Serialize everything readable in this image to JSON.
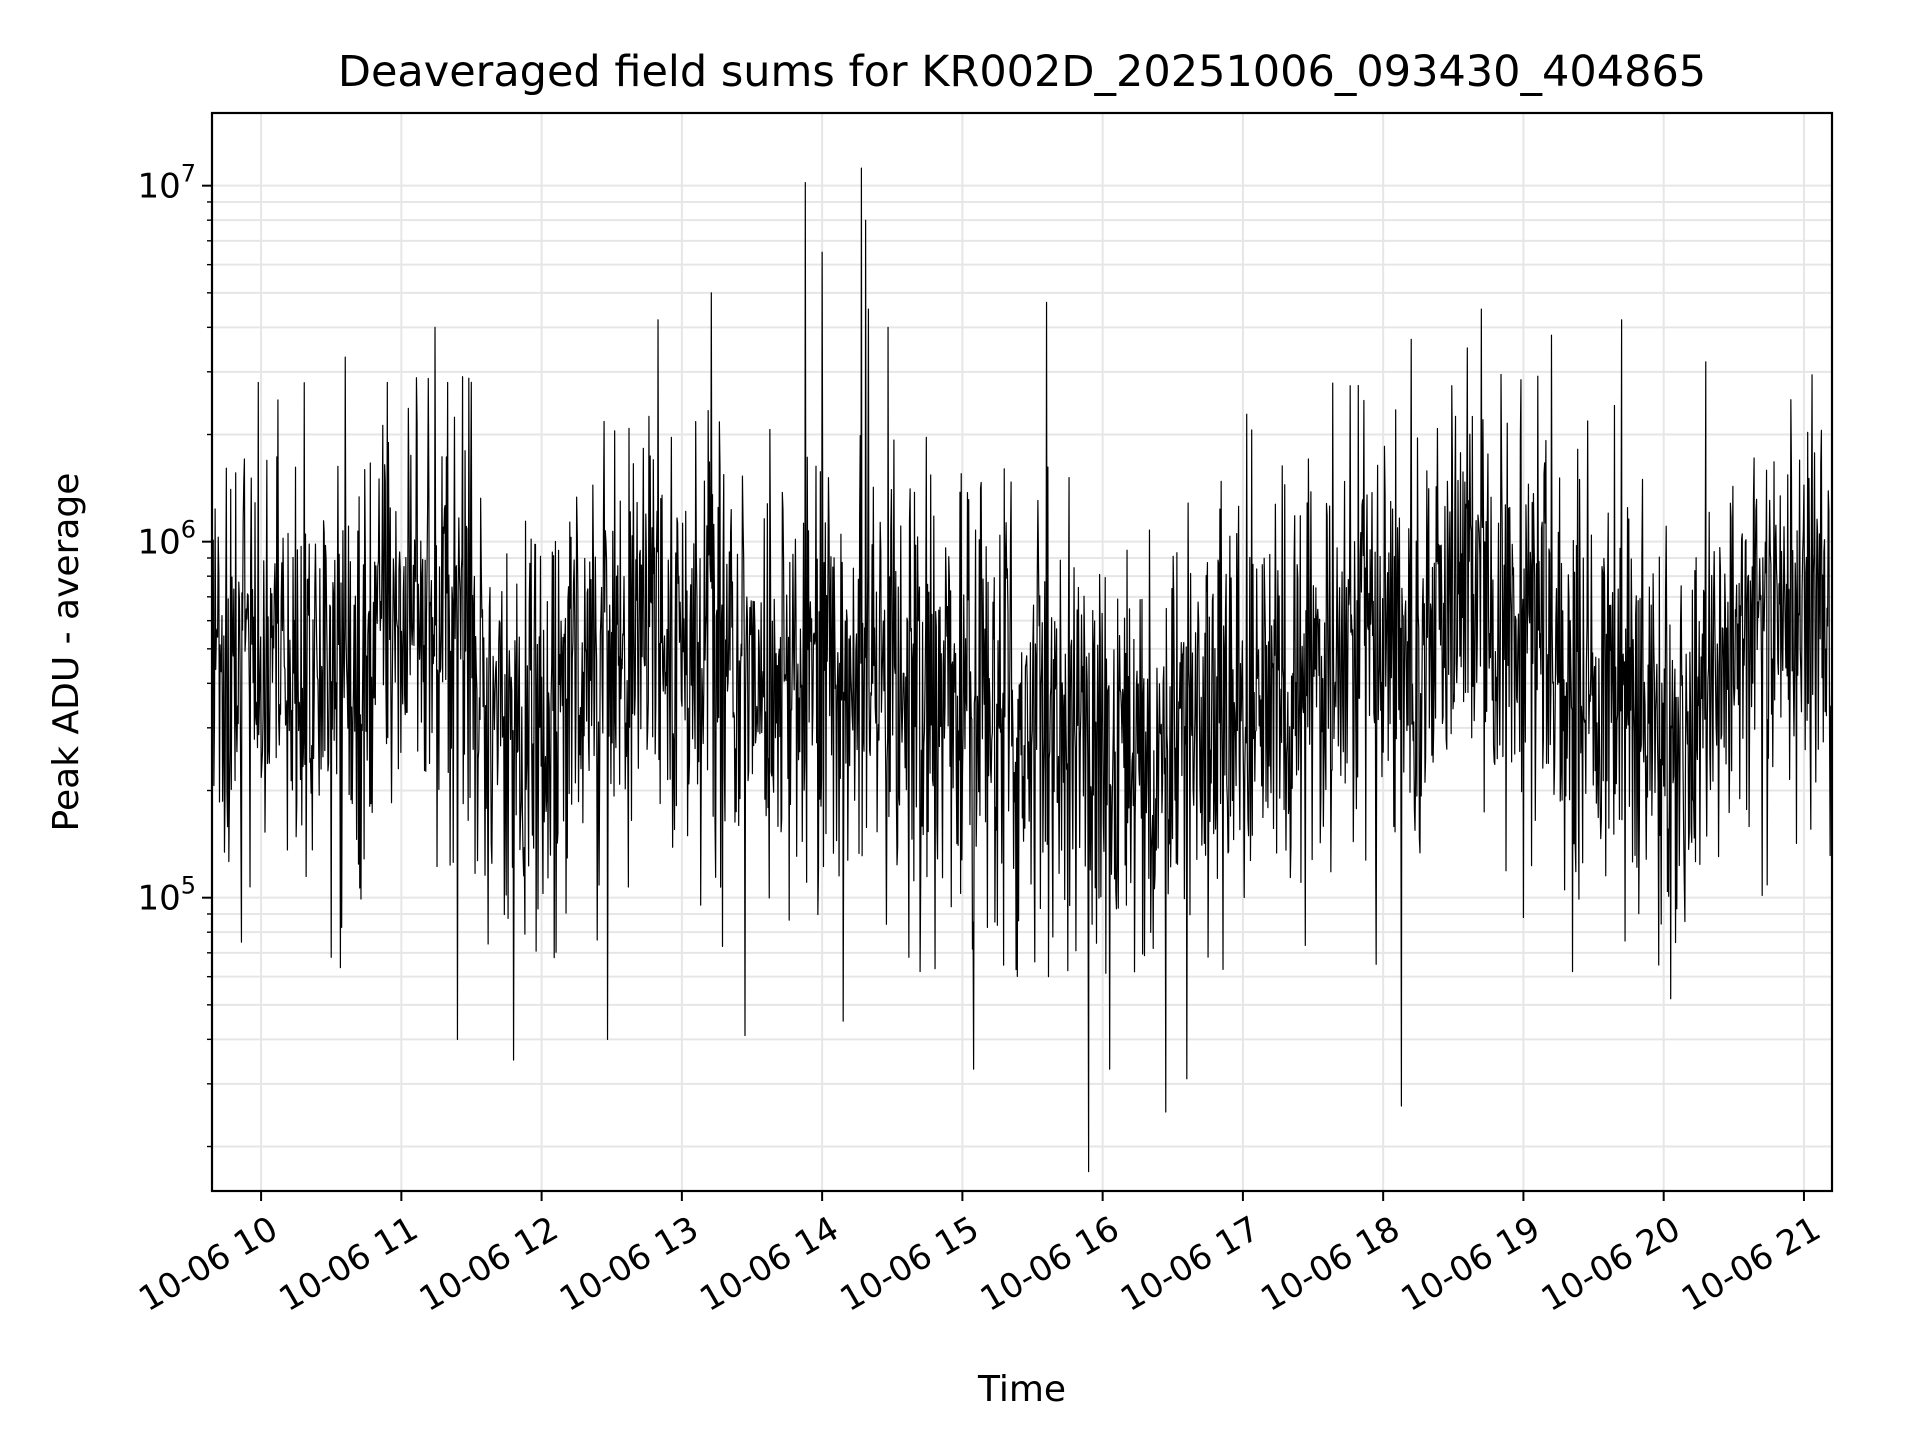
{
  "chart_data": {
    "type": "line",
    "title": "Deaveraged field sums for KR002D_20251006_093430_404865",
    "xlabel": "Time",
    "ylabel": "Peak ADU - average",
    "yscale": "log",
    "ylim": [
      15000,
      16000000
    ],
    "xlim_hours": [
      9.65,
      21.2
    ],
    "grid": true,
    "line_color": "#000000",
    "grid_color": "#e6e6e6",
    "x_ticks": [
      {
        "hour": 10,
        "label": "10-06 10"
      },
      {
        "hour": 11,
        "label": "10-06 11"
      },
      {
        "hour": 12,
        "label": "10-06 12"
      },
      {
        "hour": 13,
        "label": "10-06 13"
      },
      {
        "hour": 14,
        "label": "10-06 14"
      },
      {
        "hour": 15,
        "label": "10-06 15"
      },
      {
        "hour": 16,
        "label": "10-06 16"
      },
      {
        "hour": 17,
        "label": "10-06 17"
      },
      {
        "hour": 18,
        "label": "10-06 18"
      },
      {
        "hour": 19,
        "label": "10-06 19"
      },
      {
        "hour": 20,
        "label": "10-06 20"
      },
      {
        "hour": 21,
        "label": "10-06 21"
      }
    ],
    "y_ticks": [
      {
        "value": 100000,
        "base": "10",
        "exp": "5"
      },
      {
        "value": 1000000,
        "base": "10",
        "exp": "6"
      },
      {
        "value": 10000000,
        "base": "10",
        "exp": "7"
      }
    ],
    "baseline_profile": {
      "hour": [
        9.65,
        10.0,
        10.5,
        11.0,
        11.5,
        11.8,
        12.2,
        12.8,
        13.2,
        13.6,
        14.0,
        14.3,
        14.8,
        15.2,
        15.5,
        15.9,
        16.3,
        16.8,
        17.3,
        17.8,
        18.2,
        18.6,
        18.9,
        19.3,
        19.7,
        20.1,
        20.5,
        20.9,
        21.2
      ],
      "median": [
        450000,
        500000,
        420000,
        600000,
        550000,
        250000,
        420000,
        550000,
        520000,
        420000,
        400000,
        420000,
        380000,
        280000,
        300000,
        280000,
        220000,
        320000,
        400000,
        520000,
        480000,
        750000,
        650000,
        380000,
        400000,
        250000,
        600000,
        600000,
        600000
      ]
    },
    "series": [
      {
        "name": "Deaveraged field sums",
        "peaks": [
          {
            "hour": 9.98,
            "value": 2800000
          },
          {
            "hour": 10.12,
            "value": 2500000
          },
          {
            "hour": 10.6,
            "value": 3300000
          },
          {
            "hour": 10.9,
            "value": 2800000
          },
          {
            "hour": 11.24,
            "value": 4000000
          },
          {
            "hour": 11.33,
            "value": 2800000
          },
          {
            "hour": 12.83,
            "value": 4200000
          },
          {
            "hour": 13.21,
            "value": 5000000
          },
          {
            "hour": 13.88,
            "value": 10200000
          },
          {
            "hour": 14.0,
            "value": 6500000
          },
          {
            "hour": 14.28,
            "value": 11200000
          },
          {
            "hour": 14.31,
            "value": 8000000
          },
          {
            "hour": 14.33,
            "value": 7500000
          },
          {
            "hour": 14.33,
            "value": 6000000
          },
          {
            "hour": 14.33,
            "value": 5500000
          },
          {
            "hour": 14.33,
            "value": 5000000
          },
          {
            "hour": 14.33,
            "value": 4800000
          },
          {
            "hour": 14.33,
            "value": 4500000
          },
          {
            "hour": 14.47,
            "value": 4000000
          },
          {
            "hour": 15.6,
            "value": 4700000
          },
          {
            "hour": 18.2,
            "value": 3700000
          },
          {
            "hour": 18.7,
            "value": 4500000
          },
          {
            "hour": 18.6,
            "value": 3500000
          },
          {
            "hour": 19.2,
            "value": 3800000
          },
          {
            "hour": 19.7,
            "value": 4200000
          },
          {
            "hour": 20.3,
            "value": 3200000
          }
        ],
        "troughs": [
          {
            "hour": 9.86,
            "value": 75000
          },
          {
            "hour": 10.5,
            "value": 68000
          },
          {
            "hour": 11.4,
            "value": 40000
          },
          {
            "hour": 11.8,
            "value": 35000
          },
          {
            "hour": 12.47,
            "value": 40000
          },
          {
            "hour": 13.45,
            "value": 41000
          },
          {
            "hour": 14.15,
            "value": 45000
          },
          {
            "hour": 15.08,
            "value": 33000
          },
          {
            "hour": 15.9,
            "value": 17000
          },
          {
            "hour": 16.05,
            "value": 33000
          },
          {
            "hour": 16.45,
            "value": 25000
          },
          {
            "hour": 16.6,
            "value": 31000
          },
          {
            "hour": 17.95,
            "value": 65000
          },
          {
            "hour": 18.13,
            "value": 26000
          },
          {
            "hour": 19.0,
            "value": 88000
          },
          {
            "hour": 19.35,
            "value": 62000
          },
          {
            "hour": 20.05,
            "value": 52000
          }
        ]
      }
    ]
  }
}
